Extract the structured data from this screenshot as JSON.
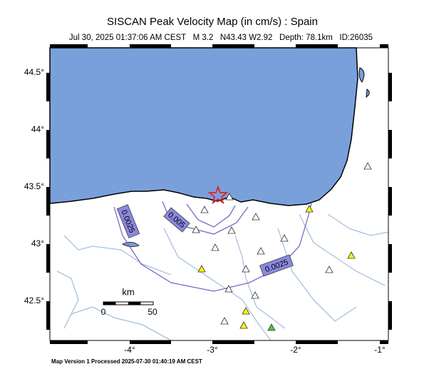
{
  "header": {
    "title": "SISCAN Peak Velocity Map (in cm/s) : Spain",
    "subtitle": "Jul 30, 2025 01:37:06 AM CEST   M 3.2   N43.43 W2.92   Depth: 78.1km   ID:26035"
  },
  "map": {
    "lat_labels": [
      "44.5°",
      "44°",
      "43.5°",
      "43°",
      "42.5°"
    ],
    "lon_labels": [
      "-4°",
      "-3°",
      "-2°",
      "-1°"
    ],
    "contour_labels": [
      "0.0025",
      "0.005",
      "0.0025"
    ],
    "scale": {
      "unit": "km",
      "start": "0",
      "end": "50"
    }
  },
  "footer": "Map Version 1 Processed 2025-07-30 01:40:19 AM CEST"
}
